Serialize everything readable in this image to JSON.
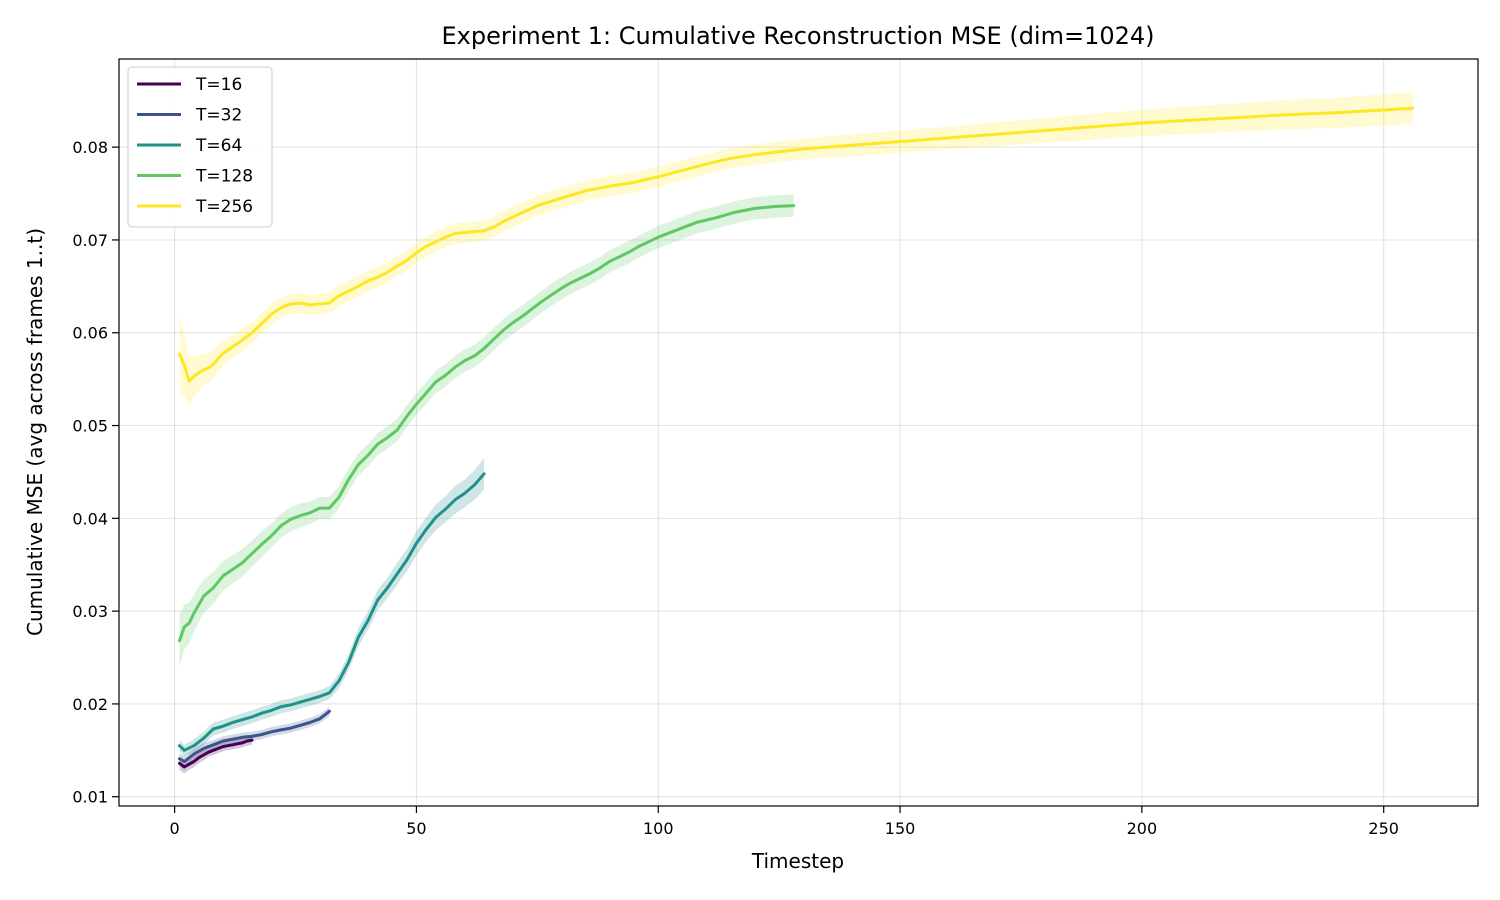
{
  "chart_data": {
    "type": "line",
    "title": "Experiment 1: Cumulative Reconstruction MSE (dim=1024)",
    "xlabel": "Timestep",
    "ylabel": "Cumulative MSE (avg across frames 1..t)",
    "xlim": [
      -11.5,
      269.5
    ],
    "ylim": [
      0.009,
      0.0895
    ],
    "xticks": [
      0,
      50,
      100,
      150,
      200,
      250
    ],
    "xtick_labels": [
      "0",
      "50",
      "100",
      "150",
      "200",
      "250"
    ],
    "yticks": [
      0.01,
      0.02,
      0.03,
      0.04,
      0.05,
      0.06,
      0.07,
      0.08
    ],
    "ytick_labels": [
      "0.01",
      "0.02",
      "0.03",
      "0.04",
      "0.05",
      "0.06",
      "0.07",
      "0.08"
    ],
    "grid": true,
    "legend_position": "top-left",
    "series": [
      {
        "name": "T=16",
        "color": "#440154",
        "x": [
          1,
          2,
          3,
          4,
          5,
          6,
          7,
          8,
          9,
          10,
          11,
          12,
          13,
          14,
          15,
          16
        ],
        "y": [
          0.0136,
          0.0132,
          0.0135,
          0.0138,
          0.0142,
          0.0145,
          0.0148,
          0.015,
          0.0152,
          0.0154,
          0.0155,
          0.0156,
          0.0157,
          0.0158,
          0.016,
          0.0161
        ],
        "band": [
          0.0007,
          0.0007,
          0.0006,
          0.0006,
          0.0006,
          0.0006,
          0.0005,
          0.0005,
          0.0005,
          0.0005,
          0.0005,
          0.0005,
          0.0005,
          0.0005,
          0.0005,
          0.0005
        ]
      },
      {
        "name": "T=32",
        "color": "#3b528b",
        "x": [
          1,
          2,
          4,
          6,
          8,
          10,
          12,
          14,
          16,
          18,
          20,
          22,
          24,
          26,
          28,
          30,
          32
        ],
        "y": [
          0.0141,
          0.0138,
          0.0146,
          0.0152,
          0.0156,
          0.016,
          0.0162,
          0.0164,
          0.0165,
          0.0167,
          0.017,
          0.0172,
          0.0174,
          0.0177,
          0.018,
          0.0184,
          0.0192
        ],
        "band": [
          0.0006,
          0.0006,
          0.0006,
          0.0006,
          0.0005,
          0.0005,
          0.0005,
          0.0005,
          0.0005,
          0.0005,
          0.0005,
          0.0005,
          0.0005,
          0.0005,
          0.0005,
          0.0005,
          0.0005
        ]
      },
      {
        "name": "T=64",
        "color": "#21918c",
        "x": [
          1,
          2,
          4,
          6,
          8,
          10,
          12,
          14,
          16,
          18,
          20,
          22,
          24,
          26,
          28,
          30,
          32,
          34,
          36,
          38,
          40,
          42,
          44,
          46,
          48,
          50,
          52,
          54,
          56,
          58,
          60,
          62,
          64
        ],
        "y": [
          0.0155,
          0.015,
          0.0155,
          0.0163,
          0.0173,
          0.0176,
          0.018,
          0.0183,
          0.0186,
          0.019,
          0.0193,
          0.0197,
          0.0199,
          0.0202,
          0.0205,
          0.0208,
          0.0212,
          0.0225,
          0.0245,
          0.0272,
          0.029,
          0.0312,
          0.0325,
          0.034,
          0.0355,
          0.0373,
          0.0388,
          0.0401,
          0.041,
          0.042,
          0.0427,
          0.0436,
          0.0448
        ],
        "band": [
          0.0006,
          0.0006,
          0.0007,
          0.0007,
          0.0007,
          0.0007,
          0.0007,
          0.0007,
          0.0007,
          0.0007,
          0.0007,
          0.0007,
          0.0007,
          0.0007,
          0.0007,
          0.0007,
          0.0007,
          0.0008,
          0.0009,
          0.001,
          0.001,
          0.0011,
          0.0011,
          0.0012,
          0.0012,
          0.0013,
          0.0013,
          0.0014,
          0.0014,
          0.0015,
          0.0015,
          0.0016,
          0.0017
        ]
      },
      {
        "name": "T=128",
        "color": "#5ec962",
        "x": [
          1,
          2,
          3,
          4,
          6,
          8,
          10,
          12,
          14,
          16,
          18,
          20,
          22,
          24,
          26,
          28,
          30,
          32,
          34,
          36,
          38,
          40,
          42,
          44,
          46,
          48,
          50,
          52,
          54,
          56,
          58,
          60,
          62,
          64,
          66,
          68,
          70,
          72,
          74,
          76,
          78,
          80,
          82,
          84,
          86,
          88,
          90,
          92,
          94,
          96,
          98,
          100,
          104,
          108,
          112,
          116,
          120,
          124,
          128
        ],
        "y": [
          0.0268,
          0.0283,
          0.0287,
          0.0298,
          0.0316,
          0.0325,
          0.0338,
          0.0345,
          0.0352,
          0.0362,
          0.0372,
          0.0381,
          0.0392,
          0.0399,
          0.0403,
          0.0406,
          0.0411,
          0.0411,
          0.0423,
          0.0442,
          0.0458,
          0.0468,
          0.048,
          0.0487,
          0.0495,
          0.051,
          0.0523,
          0.0535,
          0.0547,
          0.0554,
          0.0563,
          0.057,
          0.0575,
          0.0583,
          0.0593,
          0.0603,
          0.0611,
          0.0618,
          0.0626,
          0.0634,
          0.0641,
          0.0648,
          0.0654,
          0.0659,
          0.0664,
          0.067,
          0.0677,
          0.0682,
          0.0687,
          0.0693,
          0.0698,
          0.0703,
          0.0711,
          0.0719,
          0.0724,
          0.073,
          0.0734,
          0.0736,
          0.0737
        ],
        "band": [
          0.0028,
          0.0024,
          0.0022,
          0.002,
          0.0018,
          0.0017,
          0.0016,
          0.0015,
          0.0015,
          0.0014,
          0.0014,
          0.0013,
          0.0013,
          0.0013,
          0.0013,
          0.0012,
          0.0012,
          0.0012,
          0.0012,
          0.0012,
          0.0012,
          0.0012,
          0.0012,
          0.0012,
          0.0012,
          0.0012,
          0.0012,
          0.0012,
          0.0012,
          0.0012,
          0.0012,
          0.0012,
          0.0012,
          0.0012,
          0.0012,
          0.0012,
          0.0012,
          0.0012,
          0.0012,
          0.0012,
          0.0012,
          0.0012,
          0.0012,
          0.0012,
          0.0012,
          0.0012,
          0.0012,
          0.0012,
          0.0012,
          0.0012,
          0.0012,
          0.0012,
          0.0012,
          0.0012,
          0.0012,
          0.0012,
          0.0012,
          0.0012,
          0.0012
        ]
      },
      {
        "name": "T=256",
        "color": "#fde725",
        "x": [
          1,
          2,
          3,
          4,
          5,
          6,
          7,
          8,
          9,
          10,
          12,
          14,
          16,
          18,
          20,
          22,
          24,
          26,
          28,
          30,
          32,
          34,
          36,
          38,
          40,
          42,
          44,
          46,
          48,
          50,
          52,
          54,
          56,
          58,
          60,
          62,
          64,
          66,
          68,
          70,
          75,
          80,
          85,
          90,
          95,
          100,
          105,
          110,
          115,
          120,
          125,
          130,
          140,
          150,
          160,
          170,
          180,
          190,
          200,
          210,
          220,
          230,
          240,
          250,
          256
        ],
        "y": [
          0.0577,
          0.0565,
          0.0548,
          0.0553,
          0.0557,
          0.056,
          0.0562,
          0.0566,
          0.0572,
          0.0578,
          0.0585,
          0.0592,
          0.06,
          0.061,
          0.062,
          0.0627,
          0.0631,
          0.0632,
          0.063,
          0.0631,
          0.0632,
          0.064,
          0.0645,
          0.065,
          0.0656,
          0.066,
          0.0665,
          0.0672,
          0.0678,
          0.0686,
          0.0693,
          0.0698,
          0.0703,
          0.0707,
          0.0708,
          0.0709,
          0.071,
          0.0714,
          0.072,
          0.0725,
          0.0737,
          0.0745,
          0.0753,
          0.0758,
          0.0762,
          0.0768,
          0.0775,
          0.0782,
          0.0788,
          0.0792,
          0.0795,
          0.0798,
          0.0802,
          0.0806,
          0.081,
          0.0814,
          0.0818,
          0.0822,
          0.0826,
          0.0829,
          0.0832,
          0.0835,
          0.0837,
          0.084,
          0.0842
        ],
        "band": [
          0.004,
          0.0033,
          0.0026,
          0.0022,
          0.0019,
          0.0017,
          0.0016,
          0.0015,
          0.0014,
          0.0013,
          0.0012,
          0.0012,
          0.0011,
          0.0011,
          0.0011,
          0.0011,
          0.0011,
          0.0011,
          0.0011,
          0.0011,
          0.0011,
          0.0011,
          0.0011,
          0.0011,
          0.0011,
          0.0011,
          0.0011,
          0.0011,
          0.0011,
          0.0011,
          0.0011,
          0.0011,
          0.0011,
          0.0011,
          0.0011,
          0.0011,
          0.0011,
          0.0011,
          0.0011,
          0.0011,
          0.0011,
          0.0011,
          0.0011,
          0.0011,
          0.0011,
          0.0011,
          0.0011,
          0.0011,
          0.0011,
          0.0011,
          0.0011,
          0.0011,
          0.0012,
          0.0012,
          0.0012,
          0.0013,
          0.0013,
          0.0014,
          0.0014,
          0.0015,
          0.0015,
          0.0016,
          0.0016,
          0.0017,
          0.0017
        ]
      }
    ]
  }
}
